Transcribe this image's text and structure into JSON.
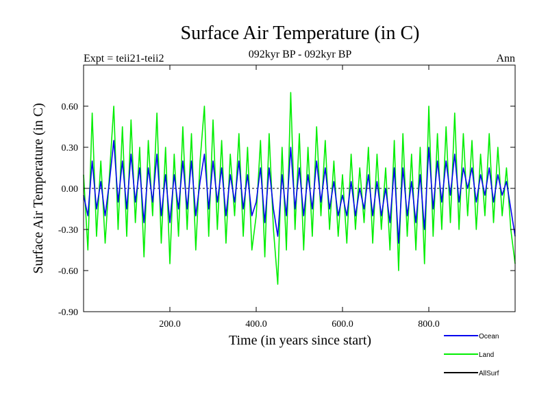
{
  "chart_data": {
    "type": "line",
    "title": "Surface Air Temperature (in C)",
    "subtitle": "092kyr BP - 092kyr BP",
    "left_label": "Expt = teii21-teii2",
    "right_label": "Ann",
    "xlabel": "Time (in years since start)",
    "ylabel": "Surface Air Temperature (in C)",
    "xlim": [
      0,
      1000
    ],
    "ylim": [
      -0.9,
      0.9
    ],
    "x_ticks": [
      200,
      400,
      600,
      800
    ],
    "x_tick_labels": [
      "200.0",
      "400.0",
      "600.0",
      "800.0"
    ],
    "y_ticks": [
      0.6,
      0.3,
      0.0,
      -0.3,
      -0.6,
      -0.9
    ],
    "y_tick_labels": [
      "0.60",
      "0.30",
      "0.00",
      "-0.30",
      "-0.60",
      "-0.90"
    ],
    "grid": false,
    "legend_position": "bottom-right",
    "series": [
      {
        "name": "Land",
        "color": "#00ee00",
        "x": [
          0,
          10,
          20,
          30,
          40,
          50,
          60,
          70,
          80,
          90,
          100,
          110,
          120,
          130,
          140,
          150,
          160,
          170,
          180,
          190,
          200,
          210,
          220,
          230,
          240,
          250,
          260,
          270,
          280,
          290,
          300,
          310,
          320,
          330,
          340,
          350,
          360,
          370,
          380,
          390,
          400,
          410,
          420,
          430,
          440,
          450,
          460,
          470,
          480,
          490,
          500,
          510,
          520,
          530,
          540,
          550,
          560,
          570,
          580,
          590,
          600,
          610,
          620,
          630,
          640,
          650,
          660,
          670,
          680,
          690,
          700,
          710,
          720,
          730,
          740,
          750,
          760,
          770,
          780,
          790,
          800,
          810,
          820,
          830,
          840,
          850,
          860,
          870,
          880,
          890,
          900,
          910,
          920,
          930,
          940,
          950,
          960,
          970,
          980,
          990,
          1000
        ],
        "values": [
          0.1,
          -0.45,
          0.55,
          -0.35,
          0.2,
          -0.4,
          0.1,
          0.6,
          -0.3,
          0.45,
          -0.35,
          0.5,
          -0.25,
          0.3,
          -0.5,
          0.35,
          -0.2,
          0.55,
          -0.4,
          0.3,
          -0.55,
          0.25,
          -0.35,
          0.45,
          -0.3,
          0.4,
          -0.45,
          0.2,
          0.6,
          -0.35,
          0.5,
          -0.3,
          0.35,
          -0.4,
          0.25,
          -0.2,
          0.4,
          -0.35,
          0.3,
          -0.45,
          -0.2,
          0.35,
          -0.5,
          0.4,
          -0.3,
          -0.7,
          0.3,
          -0.45,
          0.7,
          -0.3,
          0.4,
          -0.45,
          0.3,
          -0.35,
          0.45,
          -0.2,
          0.35,
          -0.3,
          0.2,
          -0.35,
          0.1,
          -0.4,
          0.25,
          -0.3,
          0.15,
          -0.25,
          0.3,
          -0.4,
          0.25,
          -0.3,
          0.15,
          -0.45,
          0.35,
          -0.6,
          0.4,
          -0.35,
          0.25,
          -0.45,
          0.3,
          -0.55,
          0.6,
          -0.35,
          0.4,
          -0.3,
          0.45,
          -0.25,
          0.55,
          -0.3,
          0.4,
          -0.2,
          0.35,
          -0.3,
          0.25,
          -0.2,
          0.4,
          -0.25,
          0.3,
          -0.2,
          0.15,
          -0.3,
          -0.55
        ]
      },
      {
        "name": "Ocean",
        "color": "#0000ee",
        "x": [
          0,
          10,
          20,
          30,
          40,
          50,
          60,
          70,
          80,
          90,
          100,
          110,
          120,
          130,
          140,
          150,
          160,
          170,
          180,
          190,
          200,
          210,
          220,
          230,
          240,
          250,
          260,
          270,
          280,
          290,
          300,
          310,
          320,
          330,
          340,
          350,
          360,
          370,
          380,
          390,
          400,
          410,
          420,
          430,
          440,
          450,
          460,
          470,
          480,
          490,
          500,
          510,
          520,
          530,
          540,
          550,
          560,
          570,
          580,
          590,
          600,
          610,
          620,
          630,
          640,
          650,
          660,
          670,
          680,
          690,
          700,
          710,
          720,
          730,
          740,
          750,
          760,
          770,
          780,
          790,
          800,
          810,
          820,
          830,
          840,
          850,
          860,
          870,
          880,
          890,
          900,
          910,
          920,
          930,
          940,
          950,
          960,
          970,
          980,
          990,
          1000
        ],
        "values": [
          -0.05,
          -0.2,
          0.2,
          -0.15,
          0.05,
          -0.2,
          0.05,
          0.35,
          -0.1,
          0.2,
          -0.15,
          0.25,
          -0.1,
          0.15,
          -0.25,
          0.15,
          -0.1,
          0.25,
          -0.2,
          0.1,
          -0.25,
          0.1,
          -0.15,
          0.2,
          -0.15,
          0.2,
          -0.2,
          0.05,
          0.25,
          -0.15,
          0.2,
          -0.1,
          0.15,
          -0.2,
          0.1,
          -0.1,
          0.2,
          -0.15,
          0.1,
          -0.2,
          -0.1,
          0.15,
          -0.25,
          0.15,
          -0.15,
          -0.35,
          0.1,
          -0.2,
          0.3,
          -0.15,
          0.15,
          -0.2,
          0.1,
          -0.15,
          0.2,
          -0.1,
          0.15,
          -0.15,
          0.05,
          -0.2,
          -0.05,
          -0.2,
          0.05,
          -0.2,
          0.0,
          -0.15,
          0.1,
          -0.2,
          0.05,
          -0.2,
          0.0,
          -0.25,
          0.15,
          -0.4,
          0.15,
          -0.2,
          0.05,
          -0.25,
          0.1,
          -0.3,
          0.3,
          -0.15,
          0.2,
          -0.1,
          0.2,
          -0.05,
          0.25,
          -0.1,
          0.15,
          0.0,
          0.15,
          -0.1,
          0.1,
          -0.05,
          0.15,
          -0.1,
          0.1,
          -0.05,
          0.05,
          -0.15,
          -0.35
        ]
      },
      {
        "name": "AllSurf",
        "color": "#000000",
        "x": [],
        "values": []
      }
    ]
  }
}
